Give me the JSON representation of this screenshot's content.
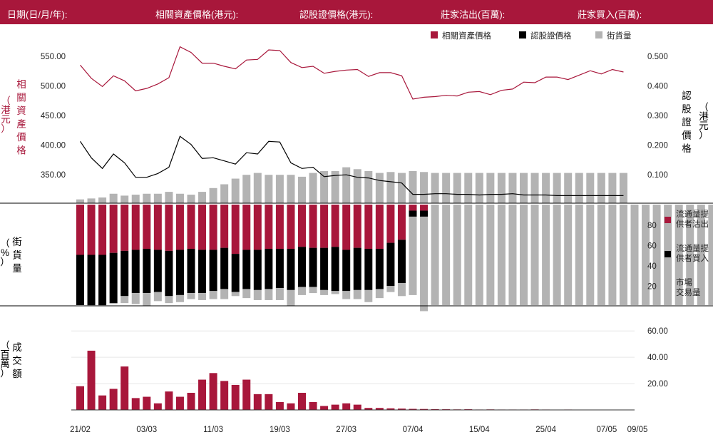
{
  "header": {
    "date_label": "日期(日/月/年):",
    "underlying_label": "相關資產價格(港元):",
    "warrant_label": "認股證價格(港元):",
    "sell_label": "莊家沽出(百萬):",
    "buy_label": "莊家買入(百萬):"
  },
  "chart_data": [
    {
      "type": "line",
      "x_labels": [
        "21/02",
        "03/03",
        "11/03",
        "19/03",
        "27/03",
        "07/04",
        "15/04",
        "25/04",
        "07/05",
        "09/05"
      ],
      "legend": [
        "相關資產價格",
        "認股證價格",
        "街貨量"
      ],
      "y_left_label": [
        "相",
        "關",
        "資",
        "產",
        "價",
        "格",
        "（",
        "港",
        "元",
        "）"
      ],
      "y_left_ticks": [
        "550.00",
        "500.00",
        "450.00",
        "400.00",
        "350.00"
      ],
      "y_left_range": [
        300,
        560
      ],
      "y_right_label": [
        "認",
        "股",
        "證",
        "價",
        "格",
        "（",
        "港",
        "元",
        "）"
      ],
      "y_right_ticks": [
        "0.500",
        "0.400",
        "0.300",
        "0.200",
        "0.100"
      ],
      "y_right_range": [
        0,
        0.52
      ],
      "colors": {
        "underlying": "#a8173b",
        "warrant": "#000000",
        "outstanding": "#b3b3b3"
      },
      "series": [
        {
          "name": "相關資產價格",
          "axis": "left",
          "values": [
            519,
            498,
            485,
            502,
            494,
            478,
            482,
            489,
            499,
            548,
            539,
            522,
            522,
            517,
            513,
            527,
            528,
            543,
            542,
            523,
            515,
            517,
            506,
            509,
            511,
            512,
            501,
            507,
            507,
            502,
            465,
            468,
            469,
            471,
            470,
            476,
            477,
            472,
            479,
            481,
            492,
            491,
            500,
            500,
            496,
            503,
            510,
            505,
            512,
            508
          ]
        },
        {
          "name": "認股證價格",
          "axis": "left",
          "values": [
            398,
            372,
            355,
            378,
            364,
            341,
            341,
            347,
            357,
            406,
            393,
            371,
            372,
            367,
            362,
            380,
            378,
            398,
            397,
            364,
            355,
            357,
            342,
            344,
            345,
            341,
            340,
            336,
            334,
            332,
            314,
            314,
            315,
            315,
            314,
            314,
            313,
            314,
            314,
            315,
            313,
            313,
            313,
            312,
            312,
            312,
            312,
            312,
            312,
            312
          ]
        },
        {
          "name": "街貨量",
          "type": "bar",
          "note": "outstanding percentage of issue, read on 0–100% scale of middle panel",
          "values": [
            2,
            2.5,
            3,
            5,
            4,
            4.5,
            5,
            5,
            6,
            5,
            4.5,
            6,
            8,
            10,
            13,
            15,
            16,
            15,
            15,
            15,
            14,
            16,
            17,
            17,
            19,
            18,
            17,
            16,
            16.5,
            16,
            17,
            16.5,
            16,
            16,
            16,
            16,
            16,
            16,
            16,
            16,
            16,
            16,
            16,
            16,
            16,
            16,
            16,
            16,
            16,
            16
          ]
        }
      ]
    },
    {
      "type": "bar",
      "y_label": [
        "街",
        "貨",
        "量",
        "（",
        "%",
        "）"
      ],
      "y_ticks": [
        "80",
        "60",
        "40",
        "20"
      ],
      "y_range": [
        0,
        100
      ],
      "legend": [
        {
          "label1": "流通量提",
          "label2": "供者沽出",
          "color": "#a8173b"
        },
        {
          "label1": "流通量提",
          "label2": "供者買入",
          "color": "#000000"
        },
        {
          "label1": "市場",
          "label2": "交易量",
          "color": "#b3b3b3"
        }
      ],
      "series": [
        {
          "name": "流通量提供者沽出",
          "values": [
            50,
            50,
            50,
            48,
            46,
            45,
            44,
            45,
            46,
            45,
            44,
            45,
            45,
            43,
            49,
            45,
            45,
            44,
            44,
            44,
            42,
            43,
            43,
            42,
            45,
            43,
            44,
            44,
            38,
            35,
            6,
            6,
            0,
            0,
            0,
            0,
            0,
            0,
            0,
            0,
            0,
            0,
            0,
            0,
            0,
            0,
            0,
            0,
            0,
            0,
            0,
            0,
            0,
            0,
            0,
            0,
            0,
            0,
            0,
            0,
            0,
            0
          ]
        },
        {
          "name": "流通量提供者買入",
          "values": [
            50,
            50,
            50,
            50,
            45,
            43,
            44,
            42,
            45,
            45,
            44,
            43,
            41,
            41,
            38,
            39,
            40,
            40,
            39,
            41,
            40,
            39,
            42,
            44,
            41,
            42,
            41,
            40,
            43,
            43,
            6,
            6,
            0,
            0,
            0,
            0,
            0,
            0,
            0,
            0,
            0,
            0,
            0,
            0,
            0,
            0,
            0,
            0,
            0,
            0,
            0,
            0,
            0,
            0,
            0,
            0,
            0,
            0,
            0,
            0,
            0,
            0
          ]
        },
        {
          "name": "市場交易量",
          "values": [
            0,
            1,
            1,
            1,
            7,
            11,
            13,
            9,
            7,
            7,
            6,
            7,
            8,
            10,
            4,
            9,
            10,
            11,
            12,
            16,
            8,
            6,
            5,
            3,
            8,
            9,
            12,
            9,
            6,
            13,
            78,
            94,
            100,
            100,
            100,
            100,
            100,
            100,
            100,
            100,
            100,
            100,
            100,
            100,
            100,
            100,
            100,
            100,
            100,
            100,
            100,
            100,
            100,
            100,
            100,
            100,
            100,
            100,
            100,
            100,
            100,
            100
          ]
        }
      ]
    },
    {
      "type": "bar",
      "y_label": [
        "成",
        "交",
        "額",
        "（",
        "百",
        "萬",
        "）"
      ],
      "y_ticks": [
        "60.00",
        "40.00",
        "20.00"
      ],
      "y_range": [
        0,
        65
      ],
      "color": "#a8173b",
      "values": [
        18,
        45,
        11,
        16,
        33,
        9,
        10,
        5,
        14,
        10,
        13,
        23,
        28,
        22,
        19,
        23,
        12,
        12,
        6,
        5,
        13,
        6,
        3,
        4,
        5,
        4,
        1.5,
        1.5,
        1.2,
        1,
        0.8,
        0.7,
        0.6,
        0.5,
        0.4,
        0.5,
        0.3,
        0.4,
        0.3,
        0.3,
        0.3,
        0.4,
        0.3,
        0.2,
        0.3,
        0.2,
        0,
        0,
        0,
        0,
        0,
        0,
        0,
        0,
        0,
        0,
        0,
        0,
        0,
        0,
        0,
        0
      ]
    }
  ]
}
